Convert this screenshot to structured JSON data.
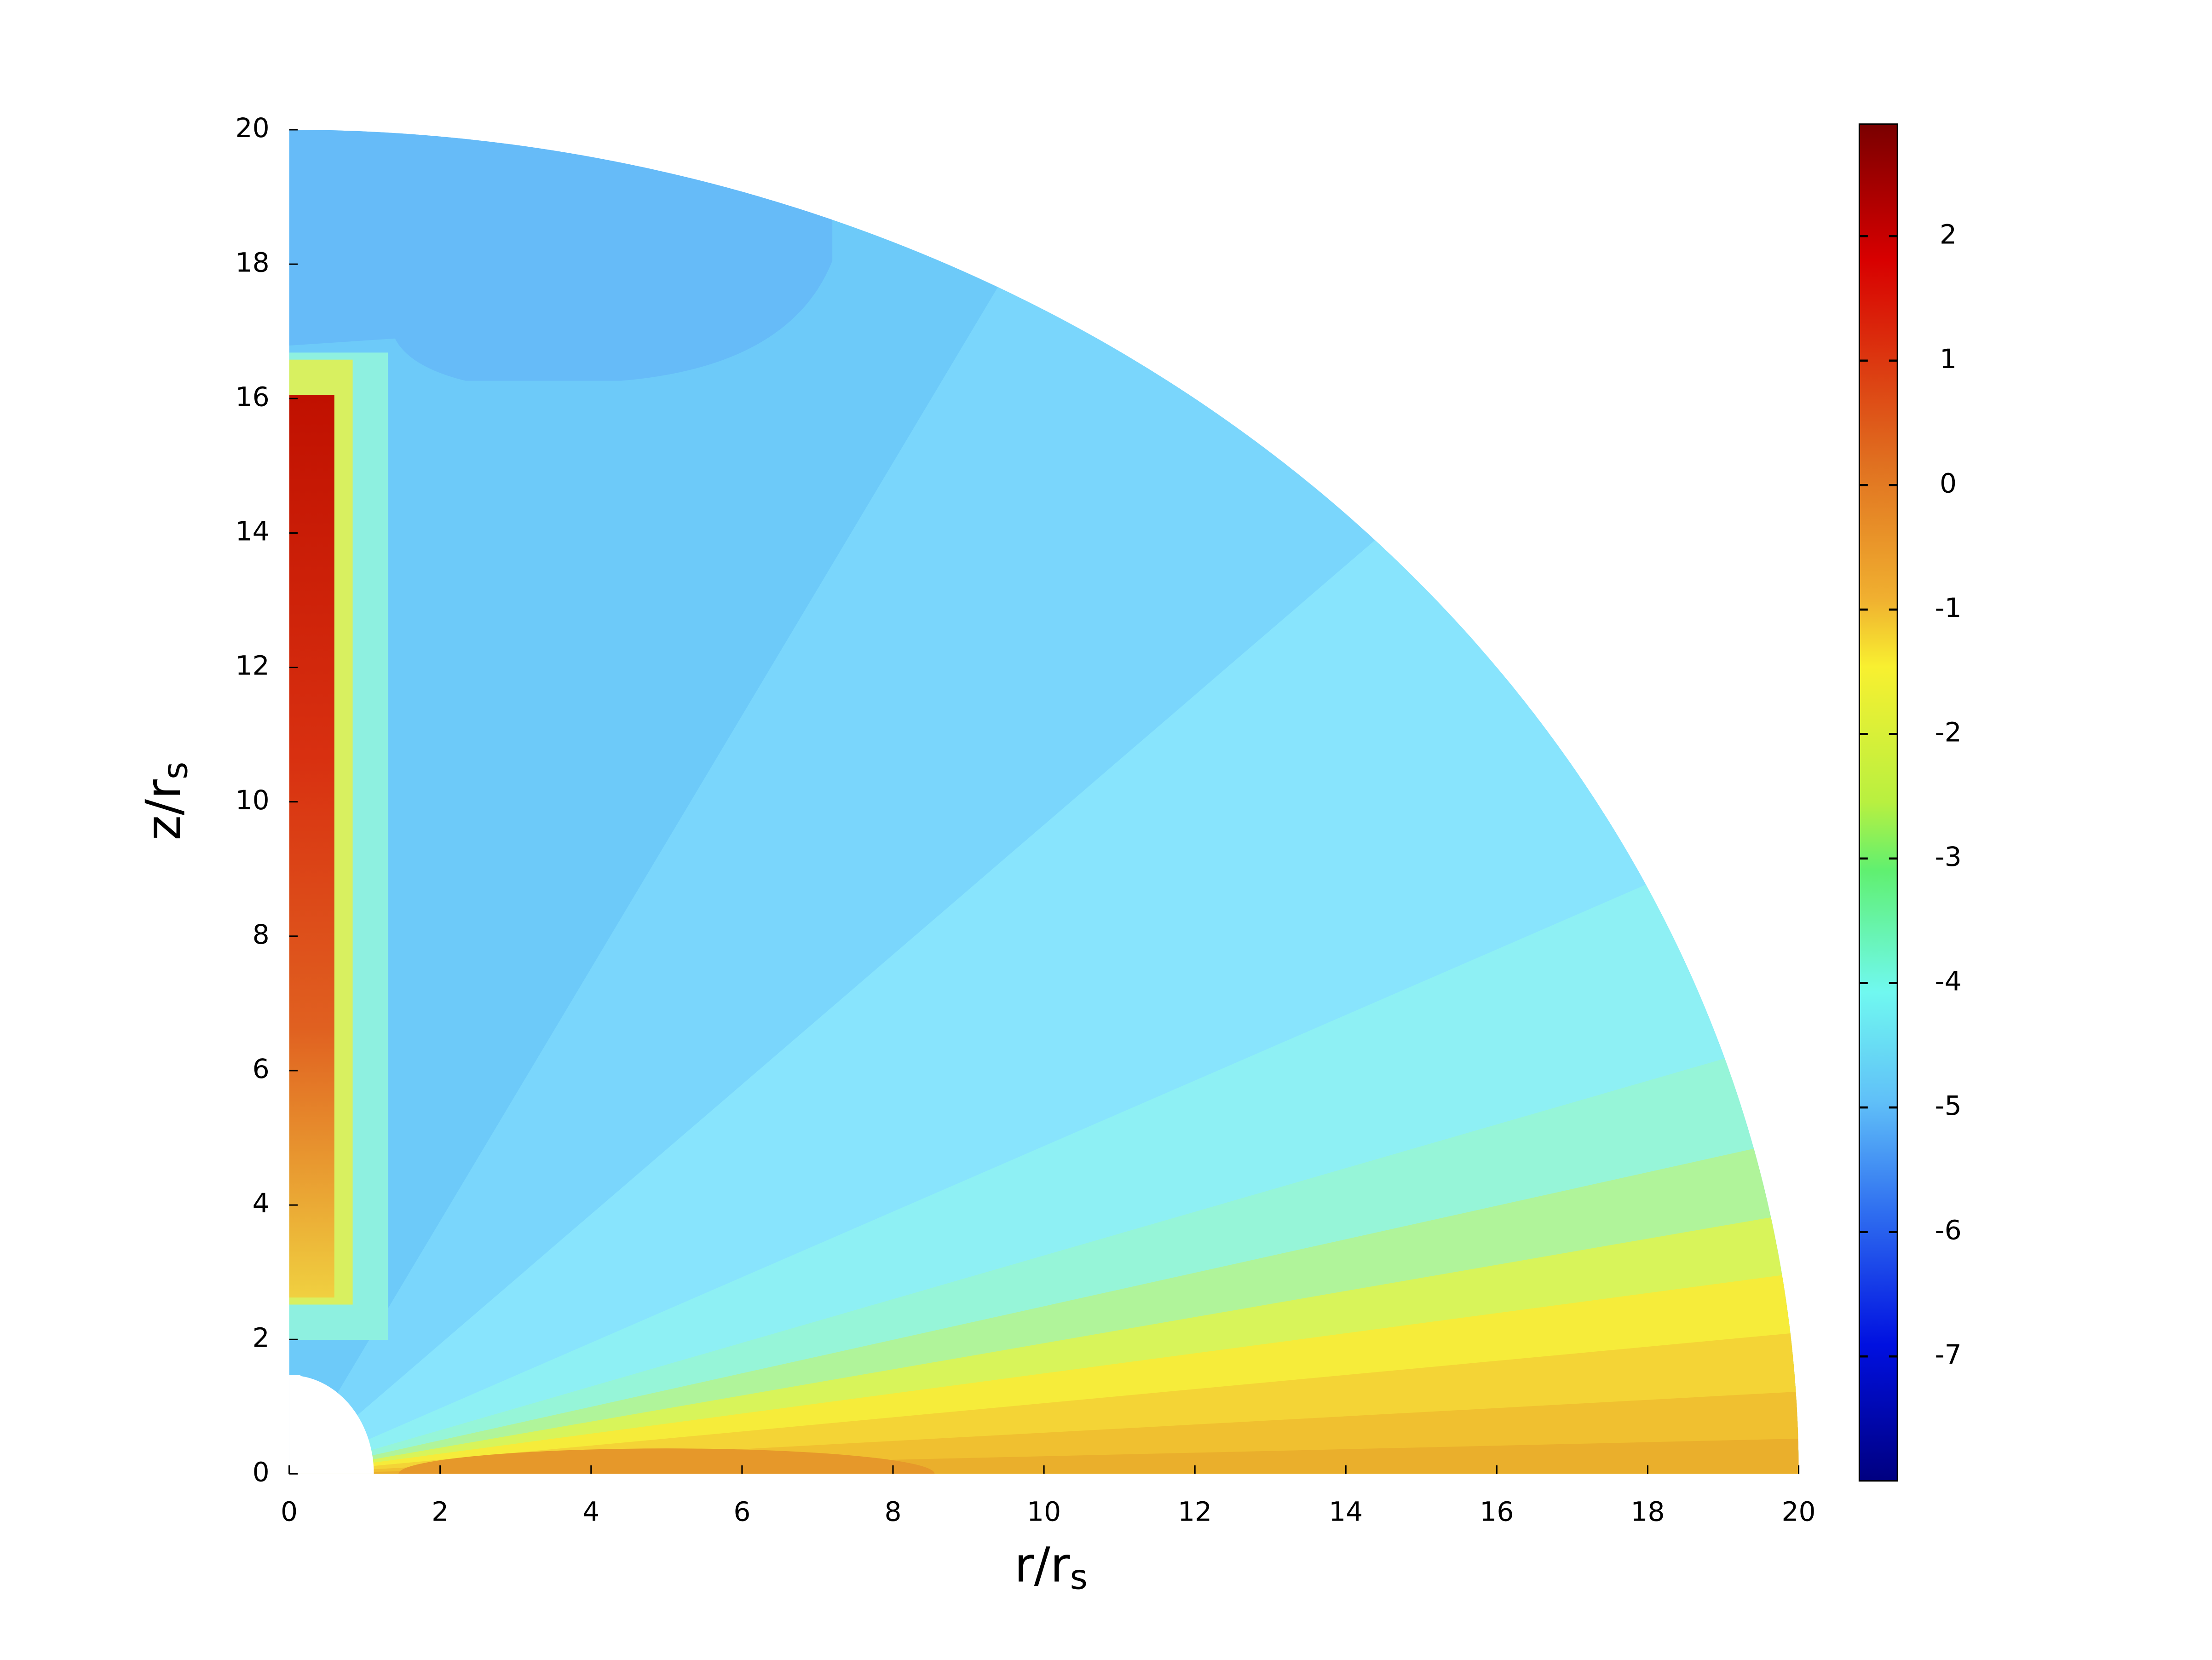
{
  "chart_data": {
    "type": "contour",
    "xlabel": "r/r",
    "xlabel_sub": "s",
    "ylabel": "z/r",
    "ylabel_sub": "s",
    "xlim": [
      0,
      20
    ],
    "xticks": [
      0,
      2,
      4,
      6,
      8,
      10,
      12,
      14,
      16,
      18,
      20
    ],
    "ylim": [
      0,
      20
    ],
    "yticks": [
      0,
      2,
      4,
      6,
      8,
      10,
      12,
      14,
      16,
      18,
      20
    ],
    "clim": [
      -8,
      2.9
    ],
    "cticks": [
      2,
      1,
      0,
      -1,
      -2,
      -3,
      -4,
      -5,
      -6,
      -7
    ]
  }
}
